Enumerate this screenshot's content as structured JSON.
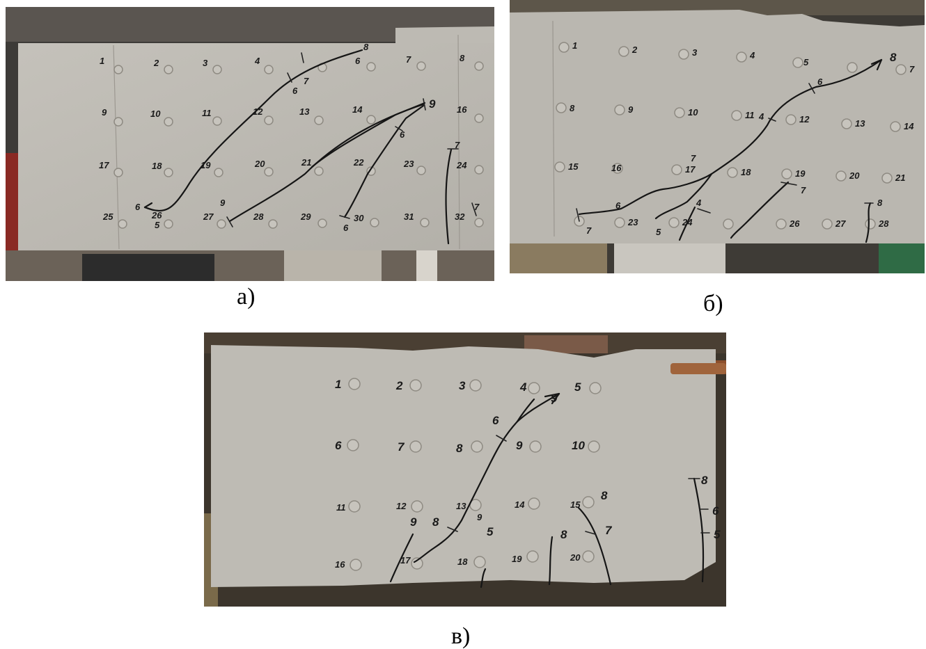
{
  "captions": {
    "a": "а)",
    "b": "б)",
    "c": "в)"
  },
  "colors": {
    "concrete": "#bdbab3",
    "concrete_dark": "#a9a69f",
    "marker": "#151515",
    "background_dark": "#3a3a3a"
  },
  "photo_a": {
    "points": [
      "1",
      "2",
      "3",
      "4",
      "6",
      "7",
      "8",
      "9",
      "10",
      "11",
      "12",
      "13",
      "14",
      "16",
      "17",
      "18",
      "19",
      "20",
      "21",
      "22",
      "23",
      "24",
      "25",
      "26",
      "27",
      "28",
      "29",
      "30",
      "31",
      "32"
    ],
    "crack_marks": [
      "8",
      "7",
      "6",
      "9",
      "6",
      "6",
      "7",
      "9",
      "6",
      "5",
      "7"
    ]
  },
  "photo_b": {
    "points": [
      "1",
      "2",
      "3",
      "4",
      "5",
      "7",
      "8",
      "9",
      "10",
      "11",
      "12",
      "13",
      "14",
      "15",
      "16",
      "17",
      "18",
      "19",
      "20",
      "21",
      "23",
      "24",
      "26",
      "27",
      "28"
    ],
    "crack_marks": [
      "8",
      "6",
      "4",
      "6",
      "4",
      "7",
      "5",
      "7",
      "7",
      "8"
    ]
  },
  "photo_c": {
    "points": [
      "1",
      "2",
      "3",
      "4",
      "5",
      "6",
      "7",
      "8",
      "9",
      "10",
      "11",
      "12",
      "13",
      "14",
      "15",
      "16",
      "17",
      "18",
      "19",
      "20"
    ],
    "crack_marks": [
      "9",
      "6",
      "9",
      "8",
      "9",
      "5",
      "8",
      "8",
      "7",
      "8",
      "6",
      "5"
    ]
  }
}
